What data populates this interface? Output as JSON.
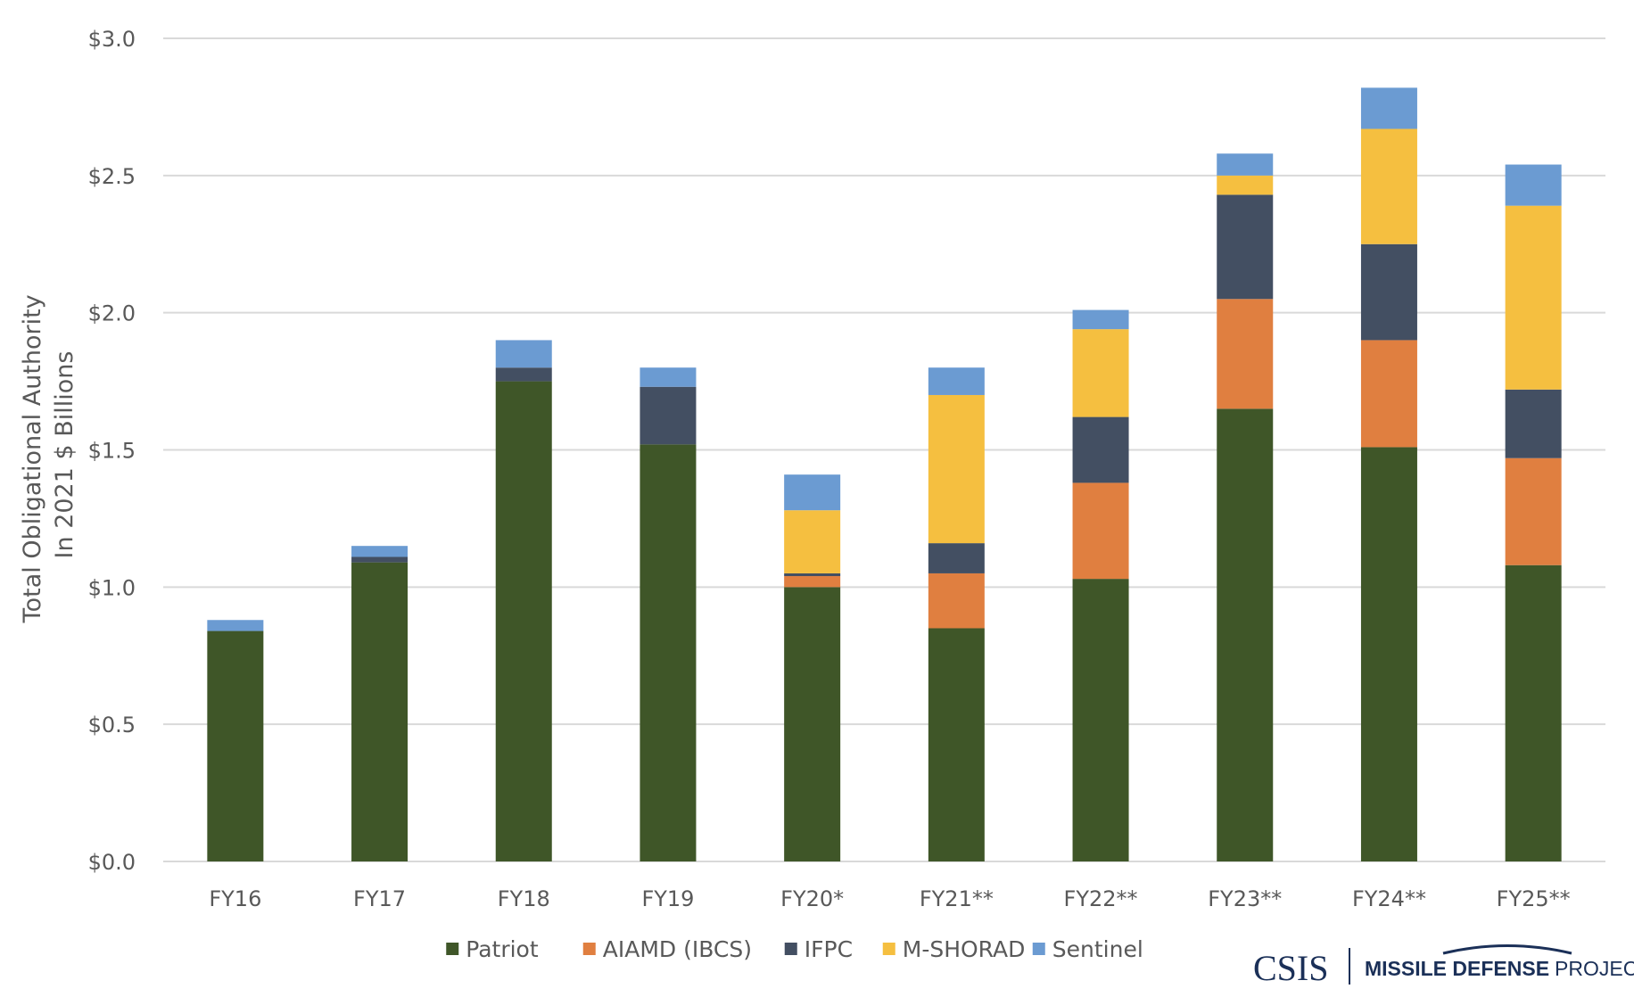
{
  "chart_data": {
    "type": "bar",
    "stacked": true,
    "title": "",
    "xlabel": "",
    "ylabel_lines": [
      "Total Obligational Authority",
      "In 2021 $ Billions"
    ],
    "ylim": [
      0,
      3.0
    ],
    "yticks": [
      0,
      0.5,
      1.0,
      1.5,
      2.0,
      2.5,
      3.0
    ],
    "ytick_labels": [
      "$0.0",
      "$0.5",
      "$1.0",
      "$1.5",
      "$2.0",
      "$2.5",
      "$3.0"
    ],
    "grid": "horizontal",
    "legend_position": "bottom",
    "categories": [
      "FY16",
      "FY17",
      "FY18",
      "FY19",
      "FY20*",
      "FY21**",
      "FY22**",
      "FY23**",
      "FY24**",
      "FY25**"
    ],
    "series": [
      {
        "name": "Patriot",
        "color": "#3f5628",
        "values": [
          0.84,
          1.09,
          1.75,
          1.52,
          1.0,
          0.85,
          1.03,
          1.65,
          1.51,
          1.08
        ]
      },
      {
        "name": "AIAMD (IBCS)",
        "color": "#e07f40",
        "values": [
          0.0,
          0.0,
          0.0,
          0.0,
          0.04,
          0.2,
          0.35,
          0.4,
          0.39,
          0.39
        ]
      },
      {
        "name": "IFPC",
        "color": "#434f62",
        "values": [
          0.0,
          0.02,
          0.05,
          0.21,
          0.01,
          0.11,
          0.24,
          0.38,
          0.35,
          0.25
        ]
      },
      {
        "name": "M-SHORAD",
        "color": "#f5bf40",
        "values": [
          0.0,
          0.0,
          0.0,
          0.0,
          0.23,
          0.54,
          0.32,
          0.07,
          0.42,
          0.67
        ]
      },
      {
        "name": "Sentinel",
        "color": "#6b9bd2",
        "values": [
          0.04,
          0.04,
          0.1,
          0.07,
          0.13,
          0.1,
          0.07,
          0.08,
          0.15,
          0.15
        ]
      }
    ]
  },
  "branding": {
    "csis": "CSIS",
    "project_bold": "MISSILE DEFENSE",
    "project_regular": "PROJECT"
  }
}
